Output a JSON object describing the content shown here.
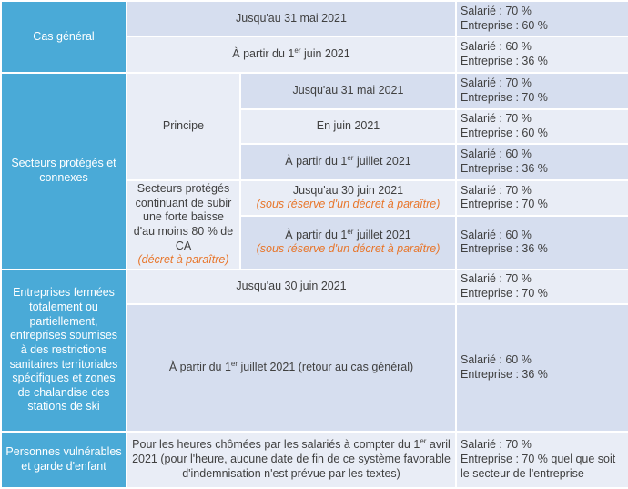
{
  "rows": {
    "general": {
      "header": "Cas général",
      "r1": {
        "period": "Jusqu'au 31 mai 2021",
        "salarie": "Salarié : 70 %",
        "entreprise": "Entreprise : 60 %"
      },
      "r2": {
        "period_pre": "À partir du 1",
        "period_sup": "er",
        "period_post": " juin 2021",
        "salarie": "Salarié : 60 %",
        "entreprise": "Entreprise : 36 %"
      }
    },
    "protected": {
      "header": "Secteurs protégés et connexes",
      "principe": "Principe",
      "r1": {
        "period": "Jusqu'au 31 mai 2021",
        "salarie": "Salarié : 70 %",
        "entreprise": "Entreprise : 70 %"
      },
      "r2": {
        "period": "En juin 2021",
        "salarie": "Salarié : 70 %",
        "entreprise": "Entreprise : 60 %"
      },
      "r3": {
        "period_pre": "À partir du 1",
        "period_sup": "er",
        "period_post": " juillet 2021",
        "salarie": "Salarié : 60 %",
        "entreprise": "Entreprise : 36 %"
      },
      "sub_label": "Secteurs protégés continuant de subir une forte baisse d'au moins 80 % de CA",
      "sub_note": "(décret à paraître)",
      "r4": {
        "period": "Jusqu'au 30 juin 2021",
        "note": "(sous réserve d'un décret à paraître)",
        "salarie": "Salarié : 70 %",
        "entreprise": "Entreprise : 70 %"
      },
      "r5": {
        "period_pre": "À partir du 1",
        "period_sup": "er",
        "period_post": " juillet 2021",
        "note": "(sous réserve d'un décret à paraître)",
        "salarie": "Salarié : 60 %",
        "entreprise": "Entreprise : 36 %"
      }
    },
    "closed": {
      "header": "Entreprises fermées totalement ou partiellement, entreprises soumises à des restrictions sanitaires territoriales spécifiques et zones de chalandise des stations de ski",
      "r1": {
        "period": "Jusqu'au 30 juin 2021",
        "salarie": "Salarié : 70 %",
        "entreprise": "Entreprise : 70 %"
      },
      "r2": {
        "period_pre": "À partir du 1",
        "period_sup": "er",
        "period_post": " juillet 2021 (retour au cas général)",
        "salarie": "Salarié : 60 %",
        "entreprise": "Entreprise : 36 %"
      }
    },
    "vulnerable": {
      "header": "Personnes vulnérables et garde d'enfant",
      "text_pre": "Pour les heures chômées par les salariés à compter du 1",
      "text_sup": "er",
      "text_post": " avril 2021 (pour l'heure, aucune date de fin de ce système favorable d'indemnisation n'est prévue par les textes)",
      "salarie": "Salarié : 70 %",
      "entreprise": "Entreprise : 70 % quel que soit le secteur de l'entreprise"
    }
  }
}
